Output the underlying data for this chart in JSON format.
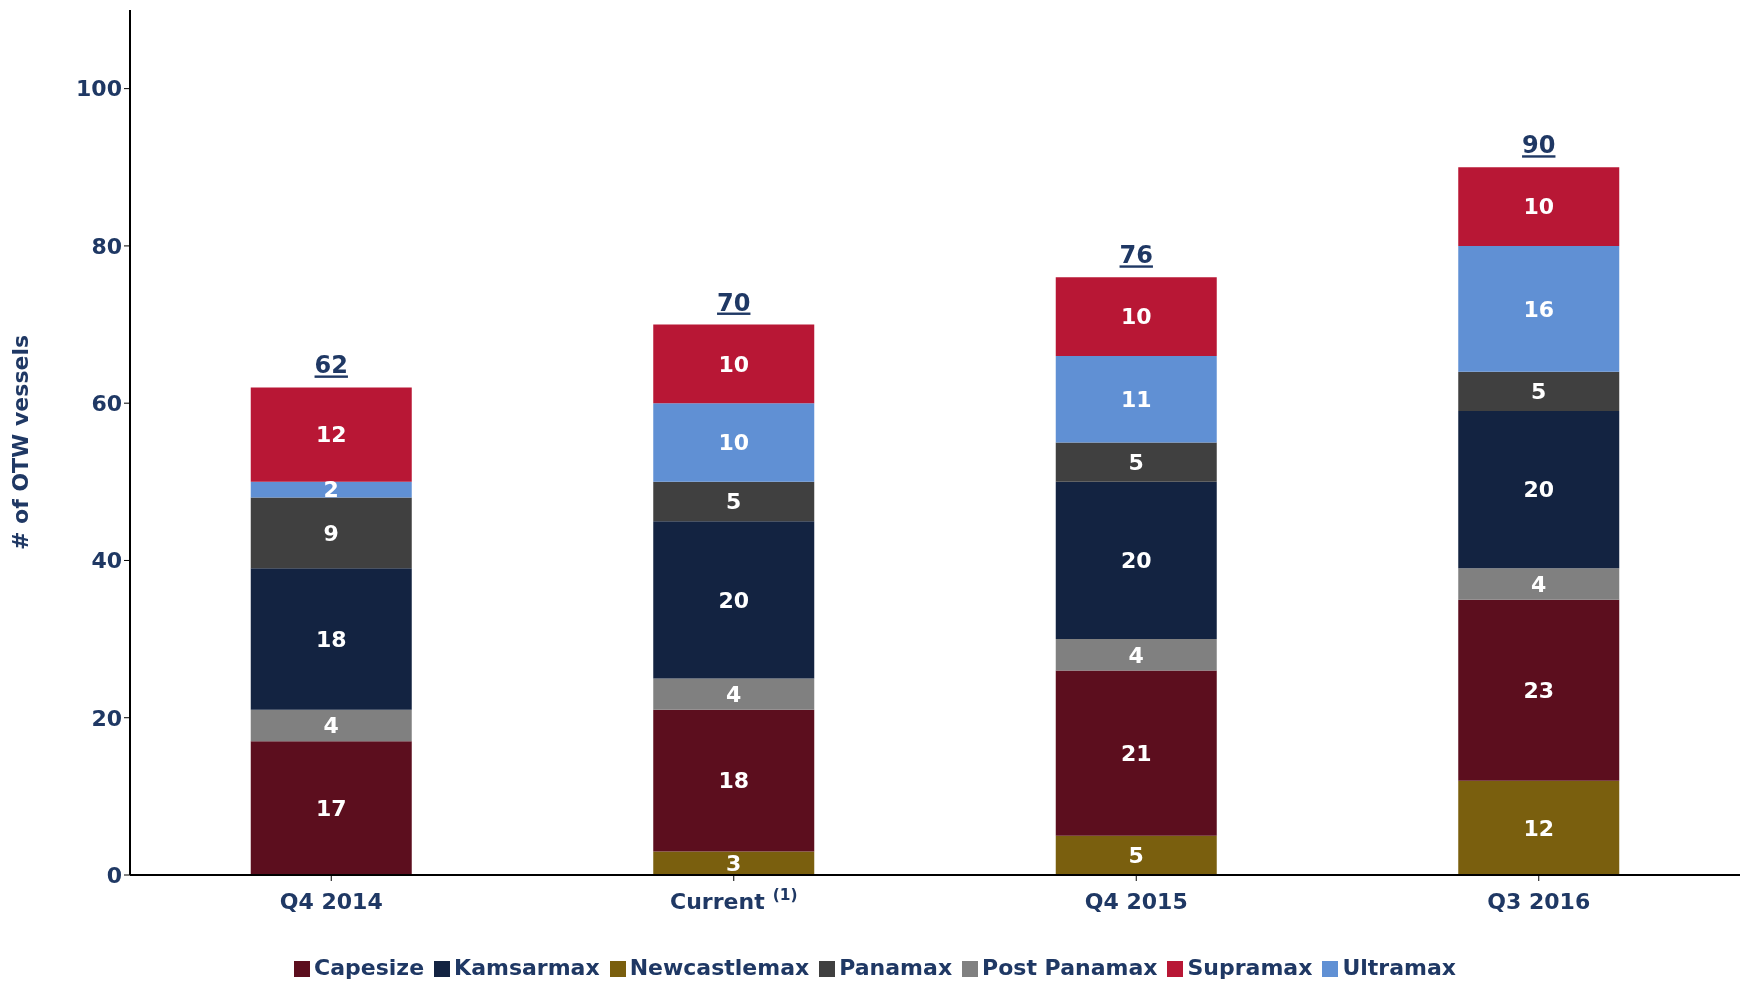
{
  "chart_data": {
    "type": "bar",
    "stacked": true,
    "ylabel": "# of OTW vessels",
    "categories": [
      "Q4 2014",
      "Current$^{(1)}$",
      "Q4 2015",
      "Q3 2016"
    ],
    "series": [
      {
        "name": "Newcastlemax",
        "color": "#7a5f0e",
        "values": [
          null,
          3,
          5,
          12
        ]
      },
      {
        "name": "Capesize",
        "color": "#5c0e1e",
        "values": [
          17,
          18,
          21,
          23
        ]
      },
      {
        "name": "Post Panamax",
        "color": "#808080",
        "values": [
          4,
          4,
          4,
          4
        ]
      },
      {
        "name": "Kamsarmax",
        "color": "#132341",
        "values": [
          18,
          20,
          20,
          20
        ]
      },
      {
        "name": "Panamax",
        "color": "#404040",
        "values": [
          9,
          5,
          5,
          5
        ]
      },
      {
        "name": "Ultramax",
        "color": "#6090d4",
        "values": [
          2,
          10,
          11,
          16
        ]
      },
      {
        "name": "Supramax",
        "color": "#b81735",
        "values": [
          12,
          10,
          10,
          10
        ]
      }
    ],
    "totals": [
      "62",
      "70",
      "76",
      "90"
    ],
    "ylim": [
      0,
      110
    ],
    "yticks": [
      0,
      20,
      40,
      60,
      80,
      100
    ],
    "data_labels": true,
    "grid": false,
    "legend": "bottom"
  }
}
